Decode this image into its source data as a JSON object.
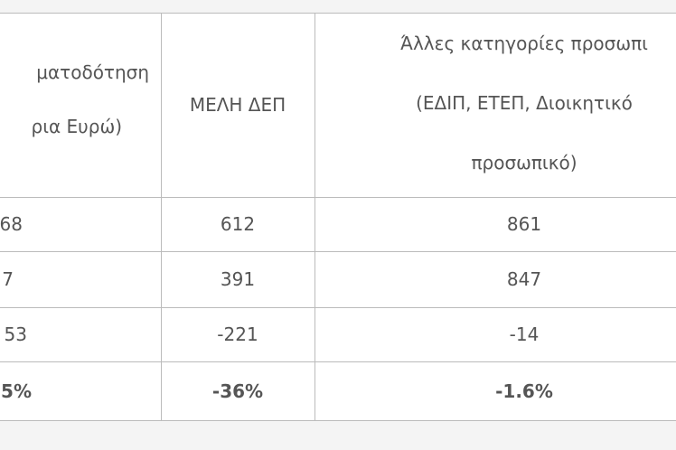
{
  "table": {
    "header": [
      [
        "ματοδότηση",
        "ρια Ευρώ)"
      ],
      [
        "ΜΕΛΗ ΔΕΠ"
      ],
      [
        "Άλλες κατηγορίες προσωπι",
        "(ΕΔΙΠ, ΕΤΕΠ, Διοικητικό",
        "προσωπικό)"
      ]
    ],
    "rows": [
      [
        "68",
        "612",
        "861"
      ],
      [
        "7",
        "391",
        "847"
      ],
      [
        "53",
        "-221",
        "-14"
      ],
      [
        "5%",
        "-36%",
        "-1.6%"
      ]
    ]
  }
}
